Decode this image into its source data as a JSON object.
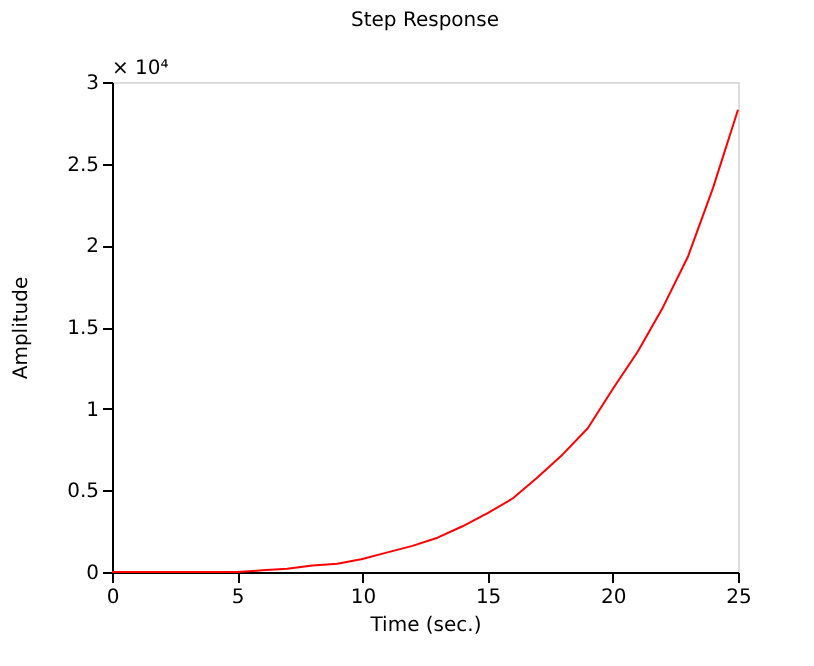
{
  "chart_data": {
    "type": "line",
    "title": "Step Response",
    "xlabel": "Time (sec.)",
    "ylabel": "Amplitude",
    "annotations": [
      "× 10⁴"
    ],
    "x": [
      0,
      1,
      2,
      3,
      4,
      5,
      6,
      7,
      8,
      9,
      10,
      11,
      12,
      13,
      14,
      15,
      16,
      17,
      18,
      19,
      20,
      21,
      22,
      23,
      24,
      25
    ],
    "series": [
      {
        "color": "#ff0000",
        "values": [
          0,
          0,
          0,
          0,
          0,
          0,
          0.01,
          0.02,
          0.04,
          0.05,
          0.08,
          0.12,
          0.16,
          0.21,
          0.28,
          0.36,
          0.45,
          0.58,
          0.72,
          0.88,
          1.12,
          1.35,
          1.62,
          1.93,
          2.35,
          2.83
        ]
      }
    ],
    "xlim": [
      0,
      25
    ],
    "xticks": [
      0,
      5,
      10,
      15,
      20,
      25
    ],
    "ylim": [
      0,
      3
    ],
    "yticks": [
      0,
      0.5,
      1,
      1.5,
      2,
      2.5,
      3
    ],
    "grid": false,
    "marker": "none",
    "line_style": "solid"
  }
}
